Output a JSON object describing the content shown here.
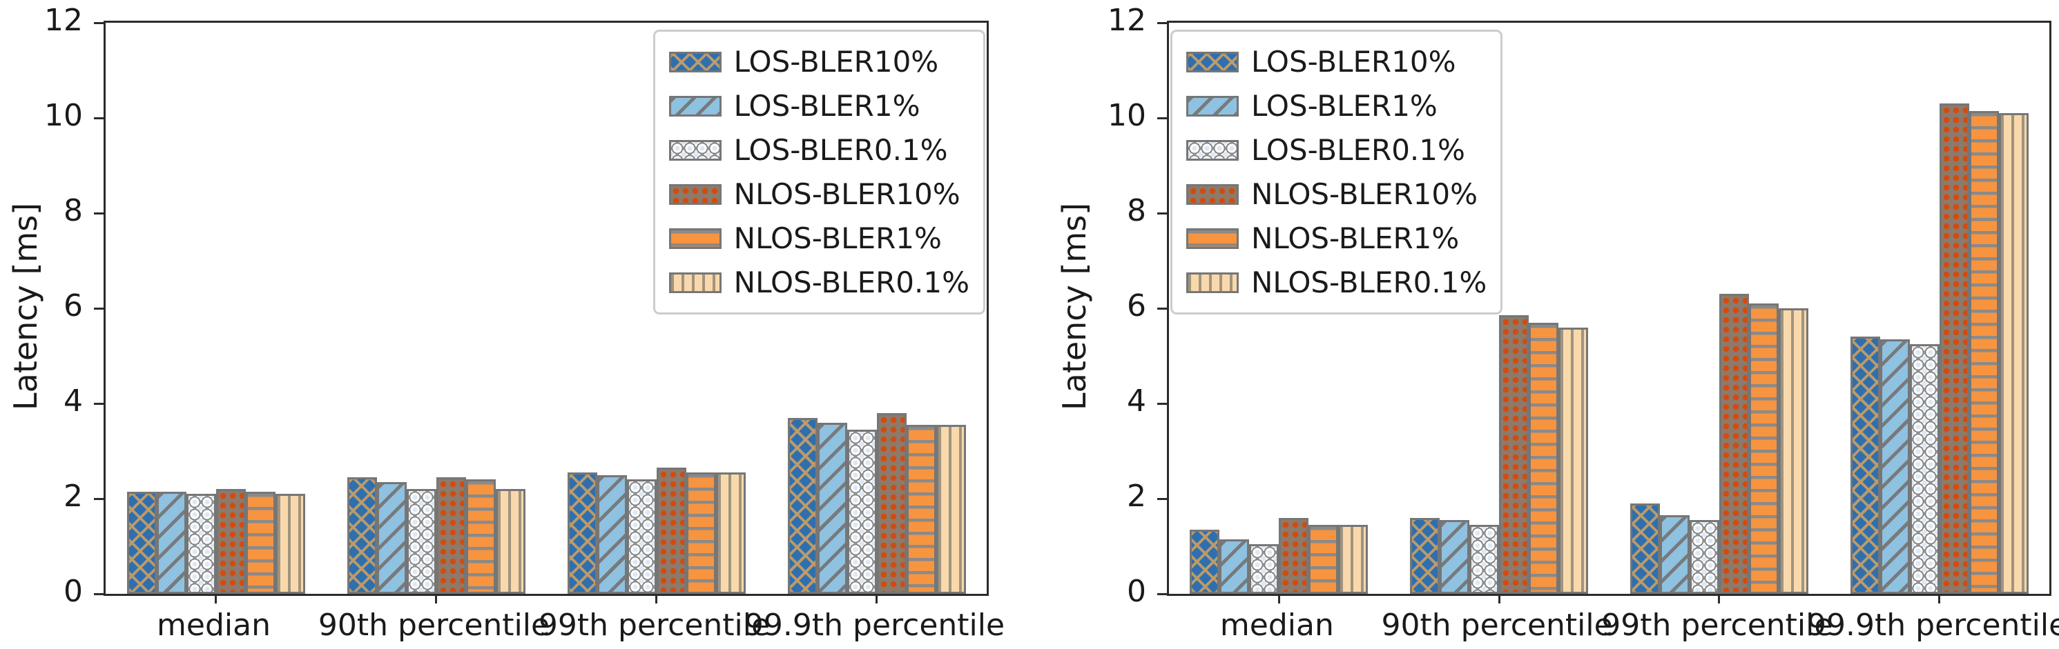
{
  "figure": {
    "description": "Two grouped bar charts of latency percentiles for LOS/NLOS at different BLER targets",
    "background_color": "#ffffff",
    "edge_color": "#767676"
  },
  "chart_data": [
    {
      "type": "bar",
      "title": "",
      "xlabel": "",
      "ylabel": "Latency [ms]",
      "ylim": [
        0,
        12
      ],
      "yticks": [
        0,
        2,
        4,
        6,
        8,
        10,
        12
      ],
      "categories": [
        "median",
        "90th percentile",
        "99th percentile",
        "99.9th percentile"
      ],
      "grid": false,
      "legend_position": "upper right",
      "series": [
        {
          "name": "LOS-BLER10%",
          "hatch": "xx",
          "color": "#2f6fad",
          "values": [
            2.15,
            2.45,
            2.55,
            3.7
          ]
        },
        {
          "name": "LOS-BLER1%",
          "hatch": "//",
          "color": "#8fc1e0",
          "values": [
            2.15,
            2.35,
            2.5,
            3.6
          ]
        },
        {
          "name": "LOS-BLER0.1%",
          "hatch": "oo",
          "color": "#d3e3f0",
          "values": [
            2.1,
            2.2,
            2.4,
            3.45
          ]
        },
        {
          "name": "NLOS-BLER10%",
          "hatch": "..",
          "color": "#8d7a6a",
          "values": [
            2.2,
            2.45,
            2.65,
            3.8
          ]
        },
        {
          "name": "NLOS-BLER1%",
          "hatch": "-",
          "color": "#f79440",
          "values": [
            2.15,
            2.4,
            2.55,
            3.55
          ]
        },
        {
          "name": "NLOS-BLER0.1%",
          "hatch": "|",
          "color": "#f9d9ac",
          "values": [
            2.1,
            2.2,
            2.55,
            3.55
          ]
        }
      ]
    },
    {
      "type": "bar",
      "title": "",
      "xlabel": "",
      "ylabel": "Latency [ms]",
      "ylim": [
        0,
        12
      ],
      "yticks": [
        0,
        2,
        4,
        6,
        8,
        10,
        12
      ],
      "categories": [
        "median",
        "90th percentile",
        "99th percentile",
        "99.9th percentile"
      ],
      "grid": false,
      "legend_position": "upper left",
      "series": [
        {
          "name": "LOS-BLER10%",
          "hatch": "xx",
          "color": "#2f6fad",
          "values": [
            1.35,
            1.6,
            1.9,
            5.4
          ]
        },
        {
          "name": "LOS-BLER1%",
          "hatch": "//",
          "color": "#8fc1e0",
          "values": [
            1.15,
            1.55,
            1.65,
            5.35
          ]
        },
        {
          "name": "LOS-BLER0.1%",
          "hatch": "oo",
          "color": "#d3e3f0",
          "values": [
            1.05,
            1.45,
            1.55,
            5.25
          ]
        },
        {
          "name": "NLOS-BLER10%",
          "hatch": "..",
          "color": "#8d7a6a",
          "values": [
            1.6,
            5.85,
            6.3,
            10.3
          ]
        },
        {
          "name": "NLOS-BLER1%",
          "hatch": "-",
          "color": "#f79440",
          "values": [
            1.45,
            5.7,
            6.1,
            10.15
          ]
        },
        {
          "name": "NLOS-BLER0.1%",
          "hatch": "|",
          "color": "#f9d9ac",
          "values": [
            1.45,
            5.6,
            6.0,
            10.1
          ]
        }
      ]
    }
  ]
}
